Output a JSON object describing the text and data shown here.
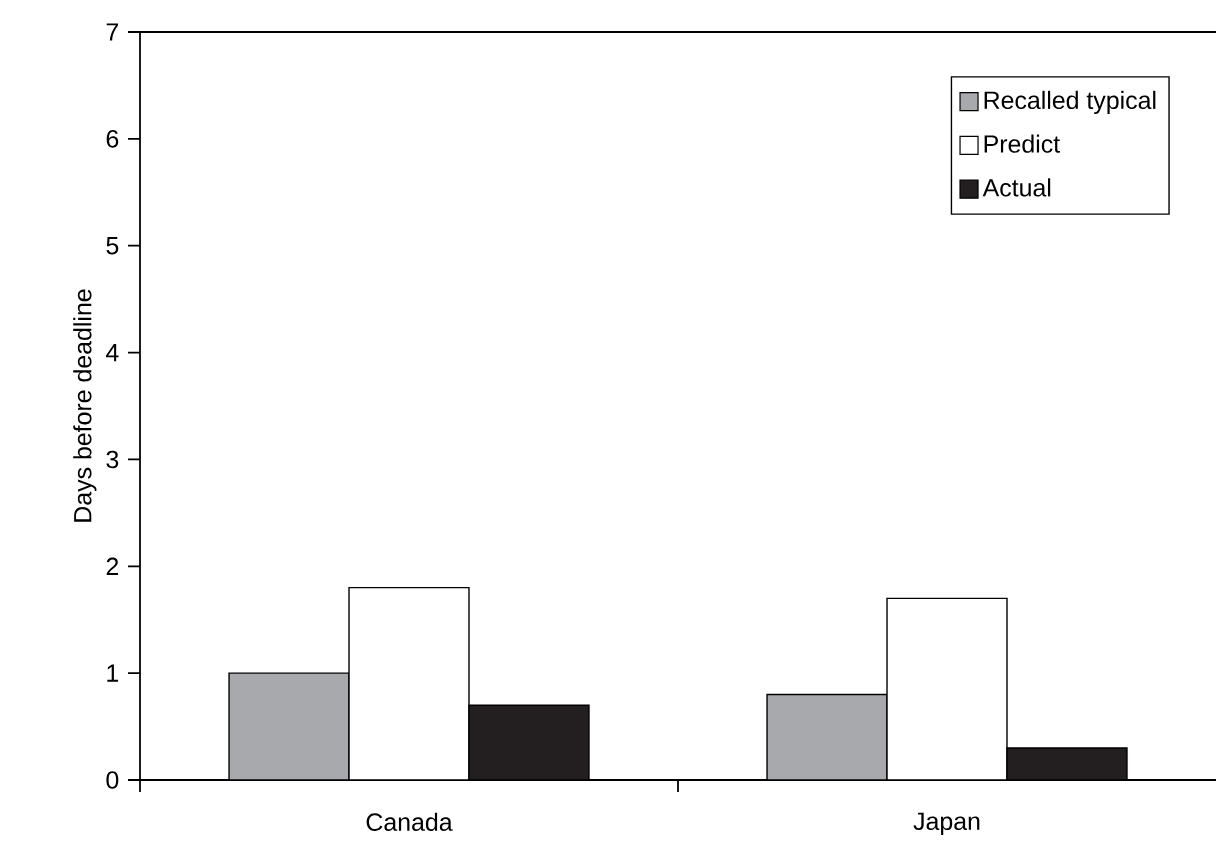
{
  "chart_data": {
    "type": "bar",
    "ylabel": "Days before deadline",
    "categories": [
      "Canada",
      "Japan"
    ],
    "series": [
      {
        "name": "Recalled typical",
        "color": "#a7a9ac",
        "values": [
          1.0,
          0.8
        ]
      },
      {
        "name": "Predict",
        "color": "#ffffff",
        "values": [
          1.8,
          1.7
        ]
      },
      {
        "name": "Actual",
        "color": "#231f20",
        "values": [
          0.7,
          0.3
        ]
      }
    ],
    "ylim": [
      0,
      7
    ],
    "yticks": [
      0,
      1,
      2,
      3,
      4,
      5,
      6,
      7
    ],
    "legend": "top right",
    "grid": false
  }
}
